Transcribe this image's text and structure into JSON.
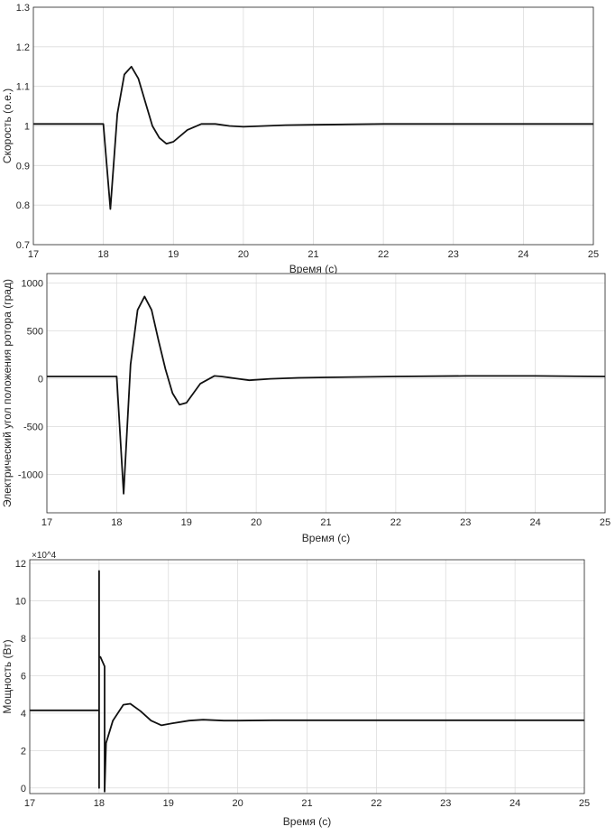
{
  "chart_data": [
    {
      "type": "line",
      "title": "",
      "xlabel": "Время (c)",
      "ylabel": "Скорость (o.e.)",
      "xlim": [
        17,
        25
      ],
      "ylim": [
        0.7,
        1.3
      ],
      "xticks": [
        "17",
        "18",
        "19",
        "20",
        "21",
        "22",
        "23",
        "24",
        "25"
      ],
      "yticks": [
        "0.7",
        "0.8",
        "0.9",
        "1",
        "1.1",
        "1.2",
        "1.3"
      ],
      "ytick_values": [
        0.7,
        0.8,
        0.9,
        1.0,
        1.1,
        1.2,
        1.3
      ],
      "grid": true,
      "series": [
        {
          "color": "#111111",
          "x": [
            17,
            18.0,
            18.1,
            18.2,
            18.3,
            18.4,
            18.5,
            18.6,
            18.7,
            18.8,
            18.9,
            19.0,
            19.2,
            19.4,
            19.6,
            19.8,
            20.0,
            20.3,
            20.6,
            21.0,
            22.0,
            23.0,
            24.0,
            25.0
          ],
          "y": [
            1.005,
            1.005,
            0.79,
            1.03,
            1.13,
            1.15,
            1.12,
            1.06,
            1.0,
            0.97,
            0.955,
            0.96,
            0.99,
            1.005,
            1.005,
            1.0,
            0.998,
            1.0,
            1.002,
            1.003,
            1.005,
            1.005,
            1.005,
            1.005
          ]
        }
      ]
    },
    {
      "type": "line",
      "title": "",
      "xlabel": "Время (c)",
      "ylabel": "Электрический угол положения ротора (град)",
      "xlim": [
        17,
        25
      ],
      "ylim": [
        -1400,
        1100
      ],
      "xticks": [
        "17",
        "18",
        "19",
        "20",
        "21",
        "22",
        "23",
        "24",
        "25"
      ],
      "yticks": [
        "-1000",
        "-500",
        "0",
        "500",
        "1000"
      ],
      "ytick_values": [
        -1000,
        -500,
        0,
        500,
        1000
      ],
      "grid": true,
      "series": [
        {
          "color": "#111111",
          "x": [
            17,
            18.0,
            18.1,
            18.2,
            18.3,
            18.4,
            18.5,
            18.6,
            18.7,
            18.8,
            18.9,
            19.0,
            19.2,
            19.4,
            19.5,
            19.7,
            19.9,
            20.2,
            20.6,
            21.0,
            22.0,
            23.0,
            24.0,
            25.0
          ],
          "y": [
            25,
            25,
            -1200,
            150,
            720,
            860,
            720,
            400,
            100,
            -150,
            -270,
            -250,
            -50,
            30,
            25,
            5,
            -15,
            0,
            10,
            15,
            25,
            30,
            30,
            25
          ]
        }
      ]
    },
    {
      "type": "line",
      "title": "",
      "xlabel": "Время (c)",
      "ylabel": "Мощность (Вт)",
      "exponent_label": "×10^4",
      "xlim": [
        17,
        25
      ],
      "ylim": [
        -0.3,
        12.2
      ],
      "xticks": [
        "17",
        "18",
        "19",
        "20",
        "21",
        "22",
        "23",
        "24",
        "25"
      ],
      "yticks": [
        "0",
        "2",
        "4",
        "6",
        "8",
        "10",
        "12"
      ],
      "ytick_values": [
        0,
        2,
        4,
        6,
        8,
        10,
        12
      ],
      "grid": true,
      "series": [
        {
          "color": "#111111",
          "x": [
            17,
            18.0,
            18.0,
            18.0,
            18.0,
            18.02,
            18.08,
            18.08,
            18.1,
            18.1,
            18.2,
            18.35,
            18.45,
            18.6,
            18.75,
            18.9,
            19.05,
            19.3,
            19.5,
            19.8,
            20.0,
            20.5,
            21.0,
            22.0,
            23.0,
            24.0,
            25.0
          ],
          "y": [
            4.15,
            4.15,
            0.0,
            11.6,
            7.0,
            7.0,
            6.5,
            -0.2,
            2.4,
            2.4,
            3.6,
            4.45,
            4.5,
            4.1,
            3.6,
            3.35,
            3.45,
            3.6,
            3.65,
            3.6,
            3.6,
            3.62,
            3.62,
            3.62,
            3.62,
            3.62,
            3.62
          ]
        }
      ]
    }
  ]
}
